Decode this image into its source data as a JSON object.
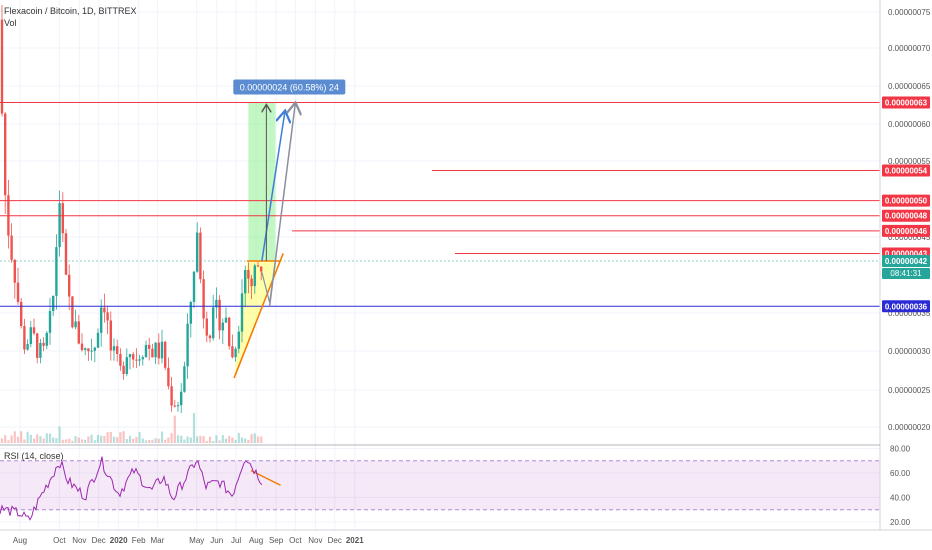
{
  "header": {
    "symbol": "Flexacoin / Bitcoin, 1D, BITTREX",
    "volume_label": "Vol"
  },
  "rsi": {
    "label": "RSI (14, close)",
    "ticks": [
      "80.00",
      "60.00",
      "40.00",
      "20.00"
    ]
  },
  "price_axis": {
    "ticks": [
      "0.00000075",
      "0.00000070",
      "0.00000065",
      "0.00000060",
      "0.00000055",
      "0.00000045",
      "0.00000035",
      "0.00000030",
      "0.00000025",
      "0.00000020"
    ]
  },
  "time_axis": {
    "labels": [
      "Aug",
      "Oct",
      "Nov",
      "Dec",
      "2020",
      "Feb",
      "Mar",
      "May",
      "Jun",
      "Jul",
      "Aug",
      "Sep",
      "Oct",
      "Nov",
      "Dec",
      "2021"
    ]
  },
  "levels": [
    {
      "value": "0.00000063",
      "color": "#f23645"
    },
    {
      "value": "0.00000054",
      "color": "#f23645"
    },
    {
      "value": "0.00000050",
      "color": "#f23645"
    },
    {
      "value": "0.00000048",
      "color": "#f23645"
    },
    {
      "value": "0.00000046",
      "color": "#f23645"
    },
    {
      "value": "0.00000043",
      "color": "#f23645"
    },
    {
      "value": "0.00000042",
      "color": "#26a69a"
    },
    {
      "value": "0.00000036",
      "color": "#2b2bd6"
    }
  ],
  "countdown": "08:41:31",
  "measure_label": "0.00000024 (60.58%) 24",
  "colors": {
    "up": "#26a69a",
    "down": "#ef5350",
    "resistance": "#f23645",
    "support": "#2b2bd6",
    "rsi_line": "#9c27b0",
    "triangle_fill": "#ffff66",
    "target_fill": "#90ee90",
    "measure_badge": "#5b8bd0"
  },
  "chart_data": {
    "type": "candlestick",
    "title": "Flexacoin / Bitcoin, 1D, BITTREX",
    "ylim": [
      1.8e-07,
      7.7e-07
    ],
    "y_scale": "linear",
    "horizontal_levels": [
      6.3e-07,
      5.4e-07,
      5e-07,
      4.8e-07,
      4.6e-07,
      4.3e-07,
      4.2e-07,
      3.6e-07
    ],
    "price_path": [
      {
        "date": "2019-07-01",
        "price": 7.4e-07
      },
      {
        "date": "2019-07-05",
        "price": 5.8e-07
      },
      {
        "date": "2019-07-10",
        "price": 4.9e-07
      },
      {
        "date": "2019-07-18",
        "price": 4.4e-07
      },
      {
        "date": "2019-07-25",
        "price": 4e-07
      },
      {
        "date": "2019-08-05",
        "price": 3.1e-07
      },
      {
        "date": "2019-08-20",
        "price": 3.2e-07
      },
      {
        "date": "2019-09-05",
        "price": 2.9e-07
      },
      {
        "date": "2019-09-20",
        "price": 3.5e-07
      },
      {
        "date": "2019-10-01",
        "price": 5.1e-07
      },
      {
        "date": "2019-10-10",
        "price": 3.9e-07
      },
      {
        "date": "2019-10-25",
        "price": 3.3e-07
      },
      {
        "date": "2019-11-10",
        "price": 3e-07
      },
      {
        "date": "2019-11-25",
        "price": 3.1e-07
      },
      {
        "date": "2019-12-08",
        "price": 3.8e-07
      },
      {
        "date": "2019-12-20",
        "price": 3e-07
      },
      {
        "date": "2020-01-05",
        "price": 2.7e-07
      },
      {
        "date": "2020-01-15",
        "price": 3.1e-07
      },
      {
        "date": "2020-01-25",
        "price": 2.9e-07
      },
      {
        "date": "2020-02-10",
        "price": 3.1e-07
      },
      {
        "date": "2020-02-25",
        "price": 3e-07
      },
      {
        "date": "2020-03-10",
        "price": 3e-07
      },
      {
        "date": "2020-03-20",
        "price": 2.4e-07
      },
      {
        "date": "2020-04-01",
        "price": 2.3e-07
      },
      {
        "date": "2020-04-10",
        "price": 2.6e-07
      },
      {
        "date": "2020-04-20",
        "price": 3.5e-07
      },
      {
        "date": "2020-05-01",
        "price": 4.6e-07
      },
      {
        "date": "2020-05-10",
        "price": 3.6e-07
      },
      {
        "date": "2020-05-20",
        "price": 3.3e-07
      },
      {
        "date": "2020-06-01",
        "price": 3.5e-07
      },
      {
        "date": "2020-06-15",
        "price": 3.4e-07
      },
      {
        "date": "2020-06-25",
        "price": 2.9e-07
      },
      {
        "date": "2020-07-05",
        "price": 3.4e-07
      },
      {
        "date": "2020-07-15",
        "price": 4.1e-07
      },
      {
        "date": "2020-07-25",
        "price": 3.9e-07
      },
      {
        "date": "2020-08-05",
        "price": 4.2e-07
      },
      {
        "date": "2020-08-12",
        "price": 4.1e-07
      }
    ],
    "triangle": {
      "upper_boundary": 4.2e-07,
      "start": {
        "date": "2020-06-28",
        "price": 2.65e-07
      },
      "apex": {
        "date": "2020-09-12",
        "price": 4.3e-07
      }
    },
    "projection_target": {
      "value": 6.3e-07,
      "label": "0.00000024 (60.58%) 24"
    },
    "rsi": {
      "period": 14,
      "levels": [
        70,
        30
      ],
      "ylim": [
        15,
        80
      ],
      "path": [
        {
          "date": "2019-07-01",
          "value": 31
        },
        {
          "date": "2019-08-01",
          "value": 27
        },
        {
          "date": "2019-08-15",
          "value": 21
        },
        {
          "date": "2019-09-01",
          "value": 40
        },
        {
          "date": "2019-09-20",
          "value": 58
        },
        {
          "date": "2019-10-01",
          "value": 70
        },
        {
          "date": "2019-10-15",
          "value": 53
        },
        {
          "date": "2019-11-10",
          "value": 41
        },
        {
          "date": "2019-12-05",
          "value": 70
        },
        {
          "date": "2020-01-01",
          "value": 43
        },
        {
          "date": "2020-01-25",
          "value": 62
        },
        {
          "date": "2020-02-20",
          "value": 45
        },
        {
          "date": "2020-03-10",
          "value": 57
        },
        {
          "date": "2020-03-25",
          "value": 39
        },
        {
          "date": "2020-04-20",
          "value": 61
        },
        {
          "date": "2020-05-01",
          "value": 71
        },
        {
          "date": "2020-05-15",
          "value": 49
        },
        {
          "date": "2020-06-05",
          "value": 53
        },
        {
          "date": "2020-06-25",
          "value": 42
        },
        {
          "date": "2020-07-15",
          "value": 74
        },
        {
          "date": "2020-08-12",
          "value": 52
        }
      ]
    }
  }
}
